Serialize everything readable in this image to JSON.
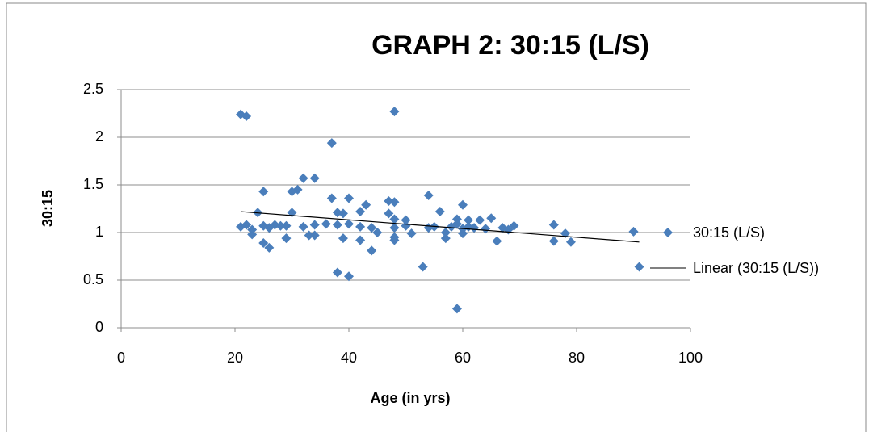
{
  "chart_data": {
    "type": "scatter",
    "title": "GRAPH 2: 30:15 (L/S)",
    "x_label": "Age (in yrs)",
    "y_label": "30:15",
    "xlim": [
      0,
      100
    ],
    "xticks": [
      0,
      20,
      40,
      60,
      80,
      100
    ],
    "ylim": [
      0,
      2.5
    ],
    "yticks": [
      0,
      0.5,
      1,
      1.5,
      2,
      2.5
    ],
    "grid": true,
    "legend": "right",
    "series": [
      {
        "name": "30:15 (L/S)",
        "color": "#4a7ebb",
        "x": [
          21,
          22,
          48,
          37,
          32,
          34,
          31,
          30,
          25,
          37,
          40,
          47,
          48,
          54,
          43,
          60,
          56,
          42,
          24,
          30,
          38,
          39,
          47,
          48,
          50,
          59,
          61,
          63,
          65,
          76,
          21,
          22,
          23,
          23,
          25,
          26,
          27,
          28,
          29,
          32,
          34,
          36,
          38,
          40,
          42,
          44,
          45,
          48,
          50,
          51,
          54,
          55,
          57,
          58,
          59,
          60,
          61,
          62,
          64,
          67,
          68,
          69,
          78,
          90,
          25,
          26,
          29,
          33,
          34,
          39,
          42,
          48,
          48,
          57,
          60,
          66,
          76,
          79,
          44,
          53,
          38,
          40,
          59,
          91
        ],
        "values": [
          2.24,
          2.22,
          2.27,
          1.94,
          1.57,
          1.57,
          1.45,
          1.43,
          1.43,
          1.36,
          1.36,
          1.33,
          1.32,
          1.39,
          1.29,
          1.29,
          1.22,
          1.22,
          1.21,
          1.21,
          1.21,
          1.2,
          1.2,
          1.14,
          1.13,
          1.14,
          1.13,
          1.13,
          1.15,
          1.08,
          1.06,
          1.08,
          1.03,
          0.98,
          1.07,
          1.05,
          1.08,
          1.07,
          1.07,
          1.06,
          1.08,
          1.09,
          1.08,
          1.09,
          1.06,
          1.05,
          1.0,
          1.05,
          1.07,
          0.99,
          1.05,
          1.06,
          1.0,
          1.06,
          1.09,
          1.04,
          1.06,
          1.05,
          1.04,
          1.05,
          1.03,
          1.07,
          0.99,
          1.01,
          0.89,
          0.84,
          0.94,
          0.97,
          0.97,
          0.94,
          0.92,
          0.92,
          0.95,
          0.94,
          0.99,
          0.91,
          0.91,
          0.9,
          0.81,
          0.64,
          0.58,
          0.54,
          0.2,
          0.64
        ]
      }
    ],
    "trendline": {
      "name": "Linear (30:15 (L/S))",
      "color": "#000000",
      "x": [
        21,
        91
      ],
      "values": [
        1.22,
        0.9
      ]
    }
  }
}
